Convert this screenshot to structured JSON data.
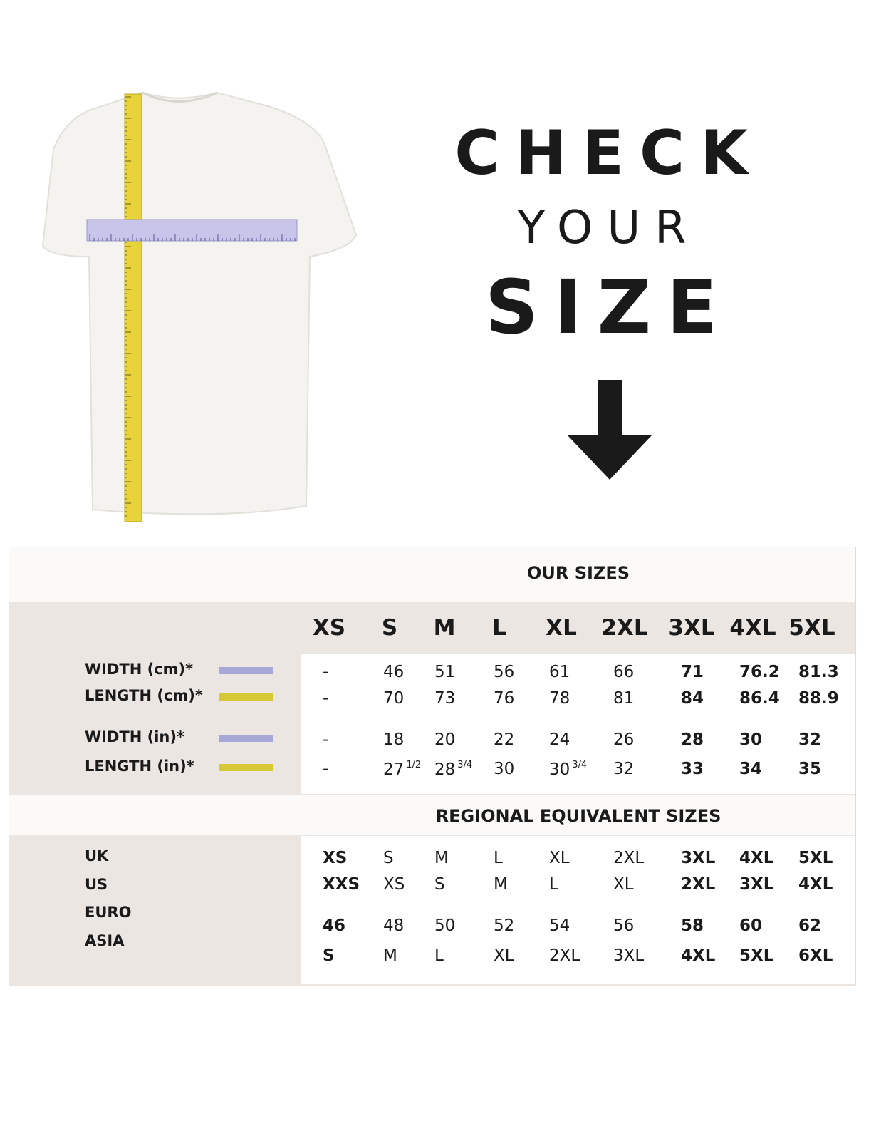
{
  "headline": {
    "line1": "CHECK",
    "line2": "YOUR",
    "line3": "SIZE"
  },
  "colors": {
    "width_bar": "#a8a8d8",
    "length_bar": "#d8c838",
    "table_bg": "#ebe6e2"
  },
  "table": {
    "our_sizes_title": "OUR SIZES",
    "sizes": [
      "XS",
      "S",
      "M",
      "L",
      "XL",
      "2XL",
      "3XL",
      "4XL",
      "5XL"
    ],
    "measure_rows": [
      {
        "label": "WIDTH (cm)*",
        "bar": "width",
        "values": [
          "-",
          "46",
          "51",
          "56",
          "61",
          "66",
          "71",
          "76.2",
          "81.3"
        ]
      },
      {
        "label": "LENGTH (cm)*",
        "bar": "length",
        "values": [
          "-",
          "70",
          "73",
          "76",
          "78",
          "81",
          "84",
          "86.4",
          "88.9"
        ]
      },
      {
        "label": "WIDTH (in)*",
        "bar": "width",
        "values": [
          "-",
          "18",
          "20",
          "22",
          "24",
          "26",
          "28",
          "30",
          "32"
        ]
      },
      {
        "label": "LENGTH (in)*",
        "bar": "length",
        "values": [
          "-",
          "27",
          "28",
          "30",
          "30",
          "32",
          "33",
          "34",
          "35"
        ],
        "fractions": [
          "",
          "1/2",
          "3/4",
          "",
          "3/4",
          "",
          "",
          "",
          ""
        ]
      }
    ],
    "regional_title": "REGIONAL EQUIVALENT SIZES",
    "regional_rows": [
      {
        "label": "UK",
        "values": [
          "XS",
          "S",
          "M",
          "L",
          "XL",
          "2XL",
          "3XL",
          "4XL",
          "5XL"
        ]
      },
      {
        "label": "US",
        "values": [
          "XXS",
          "XS",
          "S",
          "M",
          "L",
          "XL",
          "2XL",
          "3XL",
          "4XL"
        ]
      },
      {
        "label": "EURO",
        "values": [
          "46",
          "48",
          "50",
          "52",
          "54",
          "56",
          "58",
          "60",
          "62"
        ]
      },
      {
        "label": "ASIA",
        "values": [
          "S",
          "M",
          "L",
          "XL",
          "2XL",
          "3XL",
          "4XL",
          "5XL",
          "6XL"
        ]
      }
    ]
  }
}
